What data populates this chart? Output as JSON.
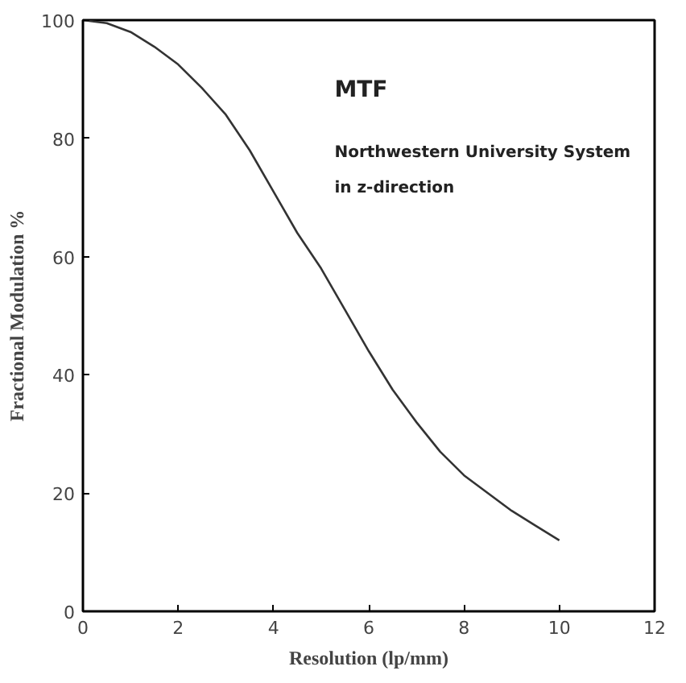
{
  "chart_data": {
    "type": "line",
    "xlabel": "Resolution (lp/mm)",
    "ylabel": "Fractional Modulation %",
    "annotations": [
      "MTF",
      "Northwestern University System",
      "in z-direction"
    ],
    "x": [
      0,
      0.5,
      1,
      1.5,
      2,
      2.5,
      3,
      3.5,
      4,
      4.5,
      5,
      5.5,
      6,
      6.5,
      7,
      7.5,
      8,
      8.5,
      9,
      9.5,
      10
    ],
    "series": [
      {
        "color": "#333333",
        "values": [
          100,
          99.5,
          98,
          95.5,
          92.5,
          88.5,
          84,
          78,
          71,
          64,
          58,
          51,
          44,
          37.5,
          32,
          27,
          23,
          20,
          17,
          14.5,
          12
        ]
      }
    ],
    "xlim": [
      0,
      12
    ],
    "ylim": [
      0,
      100
    ],
    "xticks": [
      0,
      2,
      4,
      6,
      8,
      10,
      12
    ],
    "yticks": [
      0,
      20,
      40,
      60,
      80,
      100
    ],
    "grid": false,
    "marker": "none",
    "line_style": "solid"
  }
}
